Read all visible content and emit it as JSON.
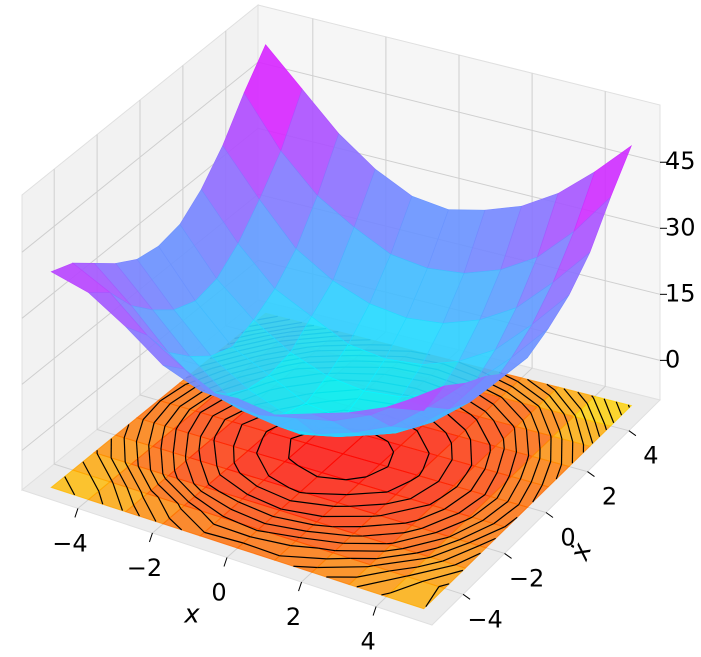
{
  "chart_data": {
    "type": "surface3d",
    "x_label": "x",
    "y_label": "ẋ",
    "x": [
      -5,
      -4,
      -3,
      -2,
      -1,
      0,
      1,
      2,
      3,
      4,
      5
    ],
    "y": [
      -5,
      -4,
      -3,
      -2,
      -1,
      0,
      1,
      2,
      3,
      4,
      5
    ],
    "z": [
      [
        40,
        38,
        33,
        27,
        24,
        25,
        24,
        27,
        30,
        34,
        36
      ],
      [
        38,
        34,
        27,
        22,
        18,
        17,
        19,
        21,
        25,
        31,
        37
      ],
      [
        34,
        27,
        19,
        13,
        11,
        10,
        11,
        14,
        18,
        25,
        33
      ],
      [
        30,
        22,
        14,
        8,
        5,
        4,
        6,
        9,
        13,
        20,
        30
      ],
      [
        27,
        18,
        10,
        5,
        2,
        1,
        2,
        5,
        10,
        17,
        26
      ],
      [
        26,
        16,
        8,
        4,
        0,
        -1,
        1,
        4,
        9,
        16,
        25
      ],
      [
        27,
        17,
        10,
        5,
        2,
        1,
        2,
        5,
        10,
        18,
        27
      ],
      [
        31,
        21,
        13,
        9,
        5,
        4,
        5,
        8,
        13,
        21,
        30
      ],
      [
        37,
        27,
        18,
        13,
        10,
        9,
        10,
        13,
        18,
        26,
        35
      ],
      [
        45,
        34,
        26,
        21,
        17,
        16,
        17,
        20,
        25,
        33,
        43
      ],
      [
        52,
        44,
        36,
        30,
        26,
        25,
        27,
        30,
        35,
        42,
        50
      ]
    ],
    "xlim": [
      -5.5,
      5.5
    ],
    "ylim": [
      -5.5,
      5.5
    ],
    "zlim": [
      -9,
      58
    ],
    "xticks": [
      {
        "value": -4,
        "label": "−4"
      },
      {
        "value": -2,
        "label": "−2"
      },
      0,
      2,
      4
    ],
    "yticks": [
      {
        "value": -4,
        "label": "−4"
      },
      {
        "value": -2,
        "label": "−2"
      },
      0,
      2,
      4
    ],
    "zticks": [
      0,
      15,
      30,
      45
    ],
    "surface_cmap": "cool",
    "floor_cmap": "autumn",
    "floor_contours": true,
    "grid": true
  }
}
